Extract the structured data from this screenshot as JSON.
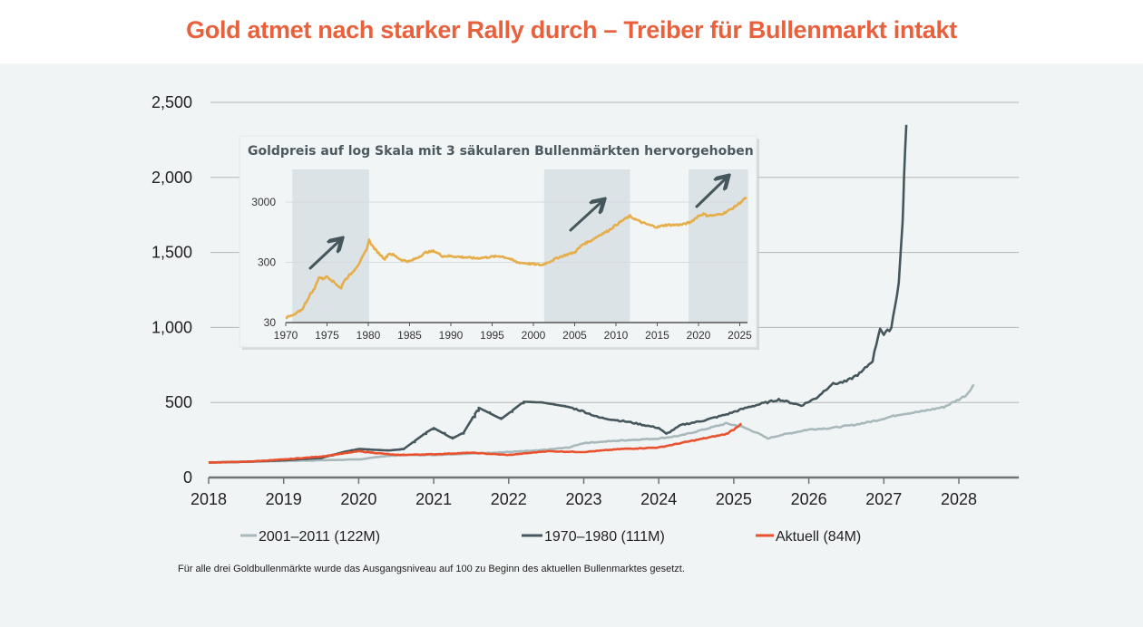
{
  "title": "Gold atmet nach starker Rally durch – Treiber für Bullenmarkt intakt",
  "footnote": "Für alle drei Goldbullenmärkte wurde das Ausgangsniveau auf 100 zu Beginn des aktuellen Bullenmarktes gesetzt.",
  "colors": {
    "title": "#e8603c",
    "panel_bg": "#f1f4f5",
    "series_2001_2011": "#a9b9bb",
    "series_1970_1980": "#45575d",
    "series_current": "#e8522e",
    "inset_line": "#e5ae4a",
    "inset_shade": "#dce3e6",
    "arrow": "#45575d",
    "grid": "#b5b5b5"
  },
  "chart_data": [
    {
      "type": "line",
      "title": "",
      "xlabel": "",
      "ylabel": "",
      "xlim": [
        2018,
        2028.8
      ],
      "ylim": [
        0,
        2500
      ],
      "grid": true,
      "legend_position": "bottom",
      "x_ticks": [
        "2018",
        "2019",
        "2020",
        "2021",
        "2022",
        "2023",
        "2024",
        "2025",
        "2026",
        "2027",
        "2028"
      ],
      "y_ticks": [
        "0",
        "500",
        "1,000",
        "1,500",
        "2,000",
        "2,500"
      ],
      "y_tick_values": [
        0,
        500,
        1000,
        1500,
        2000,
        2500
      ],
      "x_tick_values": [
        2018,
        2019,
        2020,
        2021,
        2022,
        2023,
        2024,
        2025,
        2026,
        2027,
        2028
      ],
      "series": [
        {
          "name": "2001–2011 (122M)",
          "key": "s2001",
          "x": [
            2018.0,
            2018.5,
            2019.0,
            2019.5,
            2020.0,
            2020.3,
            2020.6,
            2021.0,
            2021.5,
            2022.0,
            2022.4,
            2022.8,
            2023.0,
            2023.3,
            2023.6,
            2024.0,
            2024.3,
            2024.6,
            2024.9,
            2025.1,
            2025.3,
            2025.45,
            2025.6,
            2025.8,
            2026.0,
            2026.3,
            2026.6,
            2026.9,
            2027.2,
            2027.5,
            2027.8,
            2028.0,
            2028.1,
            2028.2
          ],
          "values": [
            100,
            105,
            110,
            115,
            120,
            140,
            150,
            150,
            160,
            170,
            180,
            200,
            230,
            240,
            250,
            260,
            280,
            320,
            360,
            340,
            300,
            260,
            280,
            300,
            320,
            330,
            350,
            380,
            420,
            440,
            470,
            520,
            550,
            620
          ]
        },
        {
          "name": "1970–1980 (111M)",
          "key": "s1970",
          "x": [
            2018.0,
            2018.5,
            2019.0,
            2019.5,
            2019.8,
            2020.0,
            2020.4,
            2020.6,
            2020.9,
            2021.0,
            2021.25,
            2021.4,
            2021.6,
            2021.9,
            2022.2,
            2022.45,
            2022.8,
            2023.0,
            2023.2,
            2023.6,
            2024.0,
            2024.1,
            2024.3,
            2024.6,
            2024.9,
            2025.2,
            2025.6,
            2025.9,
            2026.1,
            2026.3,
            2026.5,
            2026.7,
            2026.85,
            2026.95,
            2027.0,
            2027.1,
            2027.2,
            2027.25,
            2027.27,
            2027.3
          ],
          "values": [
            100,
            105,
            115,
            130,
            170,
            190,
            180,
            190,
            300,
            330,
            260,
            300,
            465,
            390,
            505,
            500,
            470,
            440,
            400,
            370,
            330,
            290,
            350,
            380,
            420,
            470,
            520,
            480,
            530,
            620,
            640,
            700,
            780,
            1000,
            950,
            1000,
            1300,
            1700,
            2000,
            2350
          ]
        },
        {
          "name": "Aktuell (84M)",
          "key": "scur",
          "x": [
            2018.0,
            2018.5,
            2019.0,
            2019.5,
            2019.8,
            2020.0,
            2020.5,
            2021.0,
            2021.5,
            2022.0,
            2022.5,
            2023.0,
            2023.5,
            2024.0,
            2024.3,
            2024.6,
            2024.9,
            2025.0,
            2025.1
          ],
          "values": [
            100,
            105,
            120,
            140,
            160,
            175,
            150,
            155,
            165,
            150,
            175,
            170,
            190,
            200,
            230,
            260,
            290,
            320,
            360
          ]
        }
      ]
    },
    {
      "type": "line",
      "title": "Goldpreis auf log Skala mit 3 säkularen Bullenmärkten hervorgehoben",
      "scale": "log",
      "xlim": [
        1970,
        2026
      ],
      "ylim": [
        30,
        6000
      ],
      "x_ticks": [
        "1970",
        "1975",
        "1980",
        "1985",
        "1990",
        "1995",
        "2000",
        "2005",
        "2010",
        "2015",
        "2020",
        "2025"
      ],
      "x_tick_values": [
        1970,
        1975,
        1980,
        1985,
        1990,
        1995,
        2000,
        2005,
        2010,
        2015,
        2020,
        2025
      ],
      "y_ticks": [
        "30",
        "300",
        "3000"
      ],
      "y_tick_values": [
        30,
        300,
        3000
      ],
      "highlighted_periods": [
        [
          1970.8,
          1980.1
        ],
        [
          2001.3,
          2011.7
        ],
        [
          2018.8,
          2026
        ]
      ],
      "series": [
        {
          "name": "Goldpreis",
          "x": [
            1970,
            1971,
            1972,
            1973,
            1973.5,
            1974,
            1974.5,
            1975,
            1976,
            1976.7,
            1977,
            1978,
            1979,
            1979.8,
            1980.1,
            1980.5,
            1981,
            1982,
            1982.5,
            1983,
            1984,
            1985,
            1986,
            1987,
            1988,
            1989,
            1990,
            1991,
            1993,
            1995,
            1996,
            1997,
            1998,
            1999,
            2000,
            2001,
            2002,
            2003,
            2004,
            2005,
            2006,
            2007,
            2008,
            2009,
            2010,
            2011,
            2011.7,
            2012,
            2013,
            2014,
            2015,
            2016,
            2017,
            2018,
            2019,
            2020,
            2020.6,
            2021,
            2022,
            2023,
            2024,
            2025,
            2025.8
          ],
          "values": [
            36,
            40,
            50,
            90,
            110,
            170,
            160,
            175,
            135,
            110,
            145,
            200,
            300,
            500,
            700,
            560,
            460,
            340,
            420,
            400,
            330,
            310,
            360,
            440,
            460,
            380,
            380,
            370,
            350,
            370,
            380,
            350,
            300,
            290,
            280,
            270,
            310,
            360,
            400,
            440,
            600,
            690,
            850,
            990,
            1250,
            1550,
            1750,
            1650,
            1400,
            1250,
            1150,
            1250,
            1250,
            1270,
            1380,
            1770,
            1900,
            1800,
            1800,
            1950,
            2300,
            2900,
            3600
          ]
        }
      ]
    }
  ]
}
